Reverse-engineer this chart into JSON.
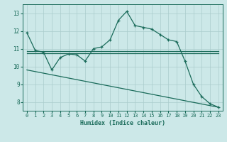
{
  "xlabel": "Humidex (Indice chaleur)",
  "bg_color": "#cce8e8",
  "grid_color": "#aacccc",
  "line_color": "#1a6b5a",
  "xlim": [
    -0.5,
    23.5
  ],
  "ylim": [
    7.5,
    13.5
  ],
  "yticks": [
    8,
    9,
    10,
    11,
    12,
    13
  ],
  "xticks": [
    0,
    1,
    2,
    3,
    4,
    5,
    6,
    7,
    8,
    9,
    10,
    11,
    12,
    13,
    14,
    15,
    16,
    17,
    18,
    19,
    20,
    21,
    22,
    23
  ],
  "line1_x": [
    0,
    1,
    2,
    3,
    4,
    5,
    6,
    7,
    8,
    9,
    10,
    11,
    12,
    13,
    14,
    15,
    16,
    17,
    18,
    19,
    20,
    21,
    22,
    23
  ],
  "line1_y": [
    11.9,
    10.9,
    10.8,
    9.8,
    10.5,
    10.7,
    10.65,
    10.3,
    11.0,
    11.1,
    11.5,
    12.6,
    13.1,
    12.3,
    12.2,
    12.1,
    11.8,
    11.5,
    11.4,
    10.3,
    9.0,
    8.3,
    7.9,
    7.7
  ],
  "line2_x": [
    0,
    1,
    2,
    3,
    4,
    5,
    6,
    7,
    8,
    9,
    10,
    11,
    12,
    13,
    14,
    15,
    16,
    17,
    18,
    19,
    20,
    21,
    22,
    23
  ],
  "line2_y": [
    10.85,
    10.85,
    10.85,
    10.85,
    10.85,
    10.85,
    10.85,
    10.85,
    10.85,
    10.85,
    10.85,
    10.85,
    10.85,
    10.85,
    10.85,
    10.85,
    10.85,
    10.85,
    10.85,
    10.85,
    10.85,
    10.85,
    10.85,
    10.85
  ],
  "line3_x": [
    0,
    1,
    2,
    3,
    4,
    5,
    6,
    7,
    8,
    9,
    10,
    11,
    12,
    13,
    14,
    15,
    16,
    17,
    18,
    19,
    20,
    21,
    22,
    23
  ],
  "line3_y": [
    10.75,
    10.75,
    10.75,
    10.75,
    10.75,
    10.75,
    10.75,
    10.75,
    10.75,
    10.75,
    10.75,
    10.75,
    10.75,
    10.75,
    10.75,
    10.75,
    10.75,
    10.75,
    10.75,
    10.75,
    10.75,
    10.75,
    10.75,
    10.75
  ],
  "line4_x": [
    0,
    23
  ],
  "line4_y": [
    9.8,
    7.7
  ]
}
